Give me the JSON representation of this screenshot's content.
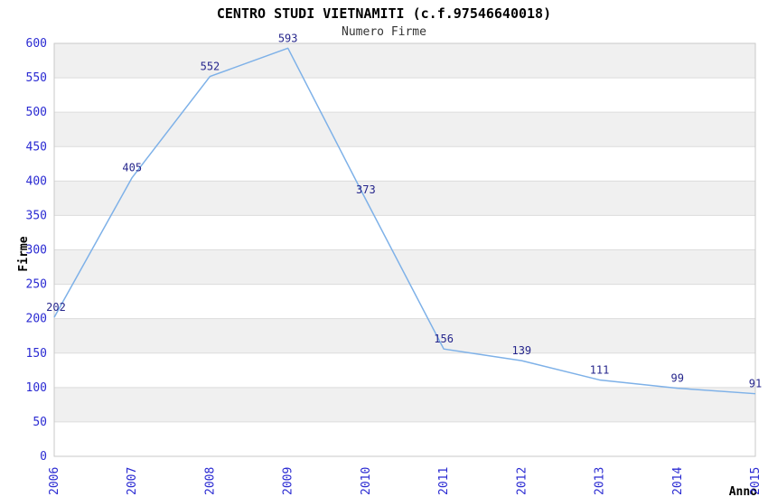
{
  "header": {
    "title": "CENTRO STUDI VIETNAMITI (c.f.97546640018)",
    "subtitle": "Numero Firme"
  },
  "chart_data": {
    "type": "line",
    "title": "CENTRO STUDI VIETNAMITI (c.f.97546640018)",
    "subtitle": "Numero Firme",
    "xlabel": "Anno",
    "ylabel": "Firme",
    "categories": [
      "2006",
      "2007",
      "2008",
      "2009",
      "2010",
      "2011",
      "2012",
      "2013",
      "2014",
      "2015"
    ],
    "series": [
      {
        "name": "Numero Firme",
        "values": [
          202,
          405,
          552,
          593,
          373,
          156,
          139,
          111,
          99,
          91
        ]
      }
    ],
    "data_labels_shown": true,
    "ylim": [
      0,
      600
    ],
    "ytick_step": 50,
    "yticks": [
      0,
      50,
      100,
      150,
      200,
      250,
      300,
      350,
      400,
      450,
      500,
      550,
      600
    ],
    "grid": "alternating-horizontal-bands",
    "legend_position": "none",
    "colors": {
      "line": "#7eb1e8",
      "band_gray": "#f0f0f0",
      "band_white": "#ffffff",
      "gridline": "#dcdcdc",
      "plot_border": "#c9c9c9",
      "tick_label": "#2a2ad2",
      "data_label": "#26268c",
      "axis_title": "#000000",
      "title": "#000000",
      "subtitle": "#333333",
      "background": "#ffffff"
    }
  }
}
